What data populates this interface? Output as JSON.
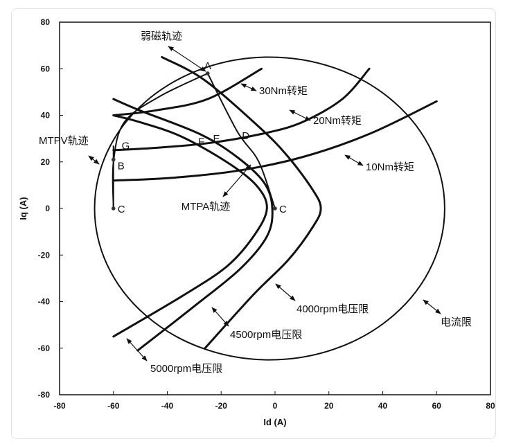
{
  "chart_data": {
    "type": "line",
    "title": "",
    "xlabel": "Id (A)",
    "ylabel": "Iq (A)",
    "xlim": [
      -80,
      80
    ],
    "ylim": [
      -80,
      80
    ],
    "grid": false,
    "x_ticks": [
      -80,
      -60,
      -40,
      -20,
      0,
      20,
      40,
      60,
      80
    ],
    "y_ticks": [
      -80,
      -60,
      -40,
      -20,
      0,
      20,
      40,
      60,
      80
    ],
    "series": [
      {
        "name": "电流限",
        "kind": "circle",
        "center": [
          -2,
          0
        ],
        "radius": 65
      },
      {
        "name": "4000rpm电压限",
        "points": [
          [
            -26,
            -60
          ],
          [
            -8,
            -37
          ],
          [
            5,
            -22
          ],
          [
            14,
            -8
          ],
          [
            17,
            0
          ],
          [
            14,
            8
          ],
          [
            5,
            22
          ],
          [
            -5,
            34
          ],
          [
            -26,
            55
          ],
          [
            -42,
            65
          ]
        ]
      },
      {
        "name": "4500rpm电压限",
        "points": [
          [
            -51,
            -61
          ],
          [
            -30,
            -42
          ],
          [
            -13,
            -26
          ],
          [
            -3,
            -12
          ],
          [
            -1,
            0
          ],
          [
            -4,
            11
          ],
          [
            -14,
            22
          ],
          [
            -28,
            32
          ],
          [
            -50,
            42
          ],
          [
            -60,
            47
          ]
        ]
      },
      {
        "name": "5000rpm电压限",
        "points": [
          [
            -60,
            -55
          ],
          [
            -35,
            -38
          ],
          [
            -18,
            -25
          ],
          [
            -8,
            -12
          ],
          [
            -3,
            0
          ],
          [
            -7,
            10
          ],
          [
            -18,
            20
          ],
          [
            -35,
            31
          ],
          [
            -50,
            37
          ],
          [
            -60,
            40
          ]
        ]
      },
      {
        "name": "30Nm转矩",
        "points": [
          [
            -60,
            40
          ],
          [
            -45,
            42
          ],
          [
            -25,
            47
          ],
          [
            -5,
            60
          ]
        ]
      },
      {
        "name": "20Nm转矩",
        "points": [
          [
            -60,
            25
          ],
          [
            -45,
            26
          ],
          [
            -25,
            28
          ],
          [
            -5,
            32
          ],
          [
            10,
            37
          ],
          [
            25,
            47
          ],
          [
            35,
            60
          ]
        ]
      },
      {
        "name": "10Nm转矩",
        "points": [
          [
            -60,
            12
          ],
          [
            -40,
            13
          ],
          [
            -15,
            16
          ],
          [
            10,
            22
          ],
          [
            35,
            32
          ],
          [
            60,
            46
          ]
        ]
      },
      {
        "name": "MTPA轨迹",
        "points": [
          [
            0,
            0
          ],
          [
            -6,
            20
          ],
          [
            -14,
            33
          ],
          [
            -25,
            58
          ]
        ]
      },
      {
        "name": "弱磁轨迹",
        "points": [
          [
            -60,
            0
          ],
          [
            -60,
            20
          ],
          [
            -56,
            37
          ],
          [
            -43,
            48
          ],
          [
            -25,
            58
          ]
        ]
      }
    ],
    "point_labels": [
      "A",
      "B",
      "C",
      "C",
      "D",
      "E",
      "F",
      "G"
    ],
    "annotations": [
      "弱磁轨迹",
      "30Nm转矩",
      "20Nm转矩",
      "10Nm转矩",
      "MTPV轨迹",
      "MTPA轨迹",
      "4000rpm电压限",
      "4500rpm电压限",
      "5000rpm电压限",
      "电流限"
    ]
  }
}
